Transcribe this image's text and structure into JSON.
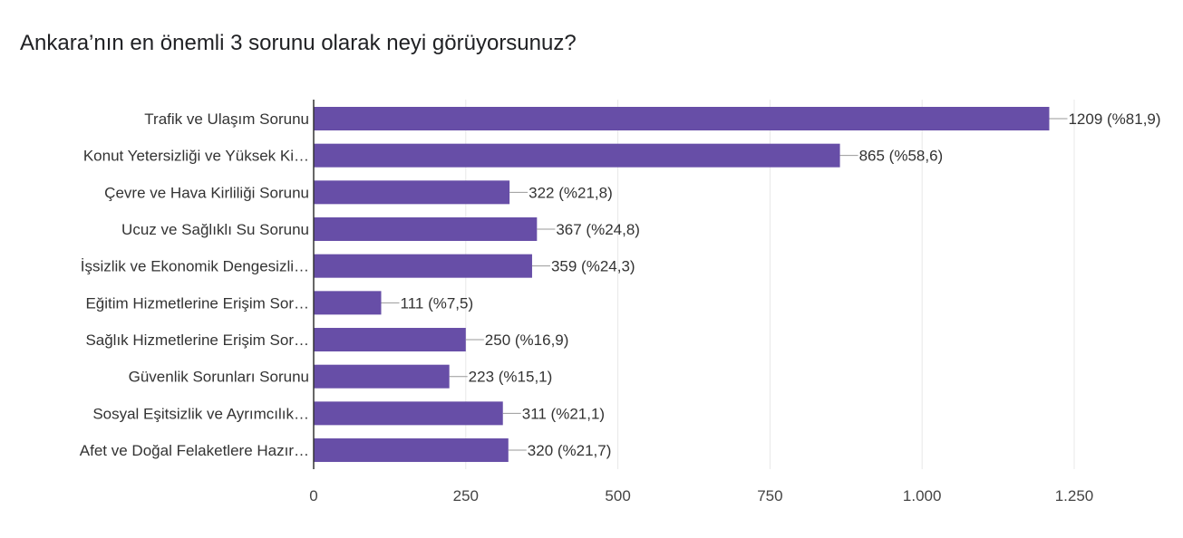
{
  "chart_data": {
    "type": "bar",
    "orientation": "horizontal",
    "title": "Ankara’nın en önemli 3 sorunu olarak neyi görüyorsunuz?",
    "categories": [
      "Trafik ve Ulaşım Sorunu",
      "Konut Yetersizliği ve Yüksek Ki…",
      "Çevre ve Hava Kirliliği Sorunu",
      "Ucuz ve Sağlıklı Su Sorunu",
      "İşsizlik ve Ekonomik Dengesizli…",
      "Eğitim Hizmetlerine Erişim Sor…",
      "Sağlık Hizmetlerine Erişim Sor…",
      "Güvenlik Sorunları Sorunu",
      "Sosyal Eşitsizlik ve Ayrımcılık…",
      "Afet ve Doğal Felaketlere Hazır…"
    ],
    "values": [
      1209,
      865,
      322,
      367,
      359,
      111,
      250,
      223,
      311,
      320
    ],
    "data_labels": [
      "1209 (%81,9)",
      "865 (%58,6)",
      "322 (%21,8)",
      "367 (%24,8)",
      "359 (%24,3)",
      "111 (%7,5)",
      "250 (%16,9)",
      "223 (%15,1)",
      "311 (%21,1)",
      "320 (%21,7)"
    ],
    "xlim": [
      0,
      1250
    ],
    "xticks": [
      0,
      250,
      500,
      750,
      1000,
      1250
    ],
    "xtick_labels": [
      "0",
      "250",
      "500",
      "750",
      "1.000",
      "1.250"
    ],
    "grid": true,
    "bar_color": "#674ea7"
  }
}
